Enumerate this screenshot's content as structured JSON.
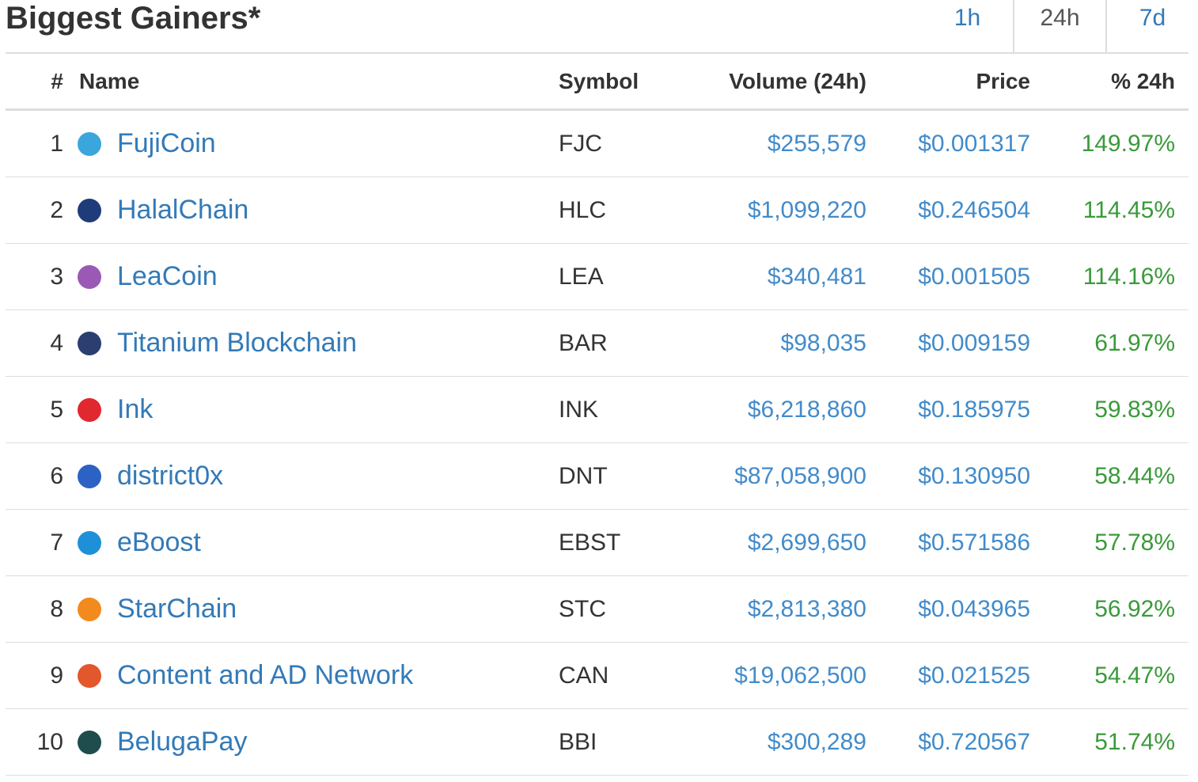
{
  "header": {
    "title": "Biggest Gainers*",
    "tabs": [
      "1h",
      "24h",
      "7d"
    ]
  },
  "table": {
    "columns": [
      "#",
      "Name",
      "Symbol",
      "Volume (24h)",
      "Price",
      "% 24h"
    ],
    "rows": [
      [
        "1",
        "FujiCoin",
        "FJC",
        "$255,579",
        "$0.001317",
        "149.97%"
      ],
      [
        "2",
        "HalalChain",
        "HLC",
        "$1,099,220",
        "$0.246504",
        "114.45%"
      ],
      [
        "3",
        "LeaCoin",
        "LEA",
        "$340,481",
        "$0.001505",
        "114.16%"
      ],
      [
        "4",
        "Titanium Blockchain",
        "BAR",
        "$98,035",
        "$0.009159",
        "61.97%"
      ],
      [
        "5",
        "Ink",
        "INK",
        "$6,218,860",
        "$0.185975",
        "59.83%"
      ],
      [
        "6",
        "district0x",
        "DNT",
        "$87,058,900",
        "$0.130950",
        "58.44%"
      ],
      [
        "7",
        "eBoost",
        "EBST",
        "$2,699,650",
        "$0.571586",
        "57.78%"
      ],
      [
        "8",
        "StarChain",
        "STC",
        "$2,813,380",
        "$0.043965",
        "56.92%"
      ],
      [
        "9",
        "Content and AD Network",
        "CAN",
        "$19,062,500",
        "$0.021525",
        "54.47%"
      ],
      [
        "10",
        "BelugaPay",
        "BBI",
        "$300,289",
        "$0.720567",
        "51.74%"
      ]
    ]
  }
}
